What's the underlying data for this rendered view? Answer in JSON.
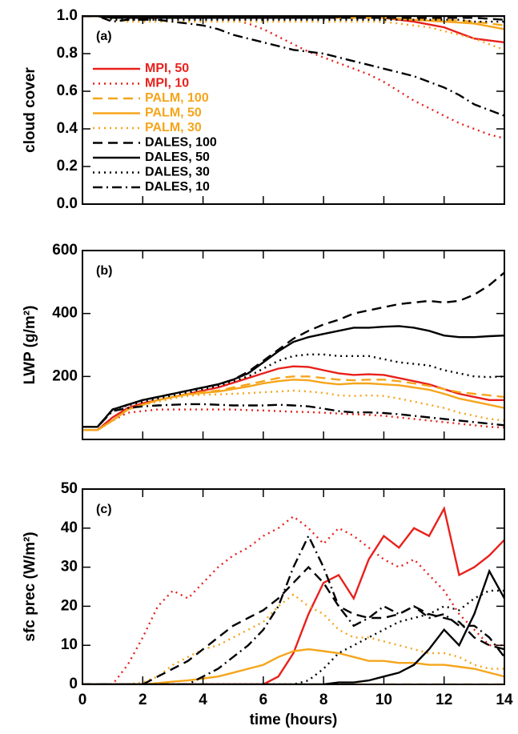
{
  "chart_data": [
    {
      "type": "line",
      "annotation": "(a)",
      "ylabel": "cloud cover",
      "x": [
        0,
        0.5,
        1,
        1.5,
        2,
        2.5,
        3,
        3.5,
        4,
        4.5,
        5,
        5.5,
        6,
        6.5,
        7,
        7.5,
        8,
        8.5,
        9,
        9.5,
        10,
        10.5,
        11,
        11.5,
        12,
        12.5,
        13,
        13.5,
        14
      ],
      "xlim": [
        0,
        14
      ],
      "xticks": [
        0,
        2,
        4,
        6,
        8,
        10,
        12,
        14
      ],
      "xtick_labels": false,
      "ylim": [
        0,
        1
      ],
      "yticks": [
        {
          "value": 0,
          "label": "0.0"
        },
        0.2,
        0.4,
        0.6,
        0.8,
        {
          "value": 1,
          "label": "1.0"
        }
      ],
      "legend": "upper left",
      "series": [
        {
          "name": "MPI, 50",
          "color": "#e8211c",
          "dash": "solid",
          "values": [
            1,
            1,
            1,
            1,
            1,
            1,
            1,
            1,
            1,
            1,
            1,
            1,
            1,
            1,
            1,
            1,
            1,
            0.995,
            0.99,
            0.99,
            0.99,
            0.98,
            0.97,
            0.955,
            0.94,
            0.91,
            0.88,
            0.87,
            0.86
          ]
        },
        {
          "name": "MPI, 10",
          "color": "#e8211c",
          "dash": "dotted",
          "values": [
            1,
            1,
            1,
            1,
            1,
            1,
            1,
            1,
            1,
            0.99,
            0.98,
            0.96,
            0.93,
            0.89,
            0.85,
            0.81,
            0.78,
            0.75,
            0.72,
            0.69,
            0.65,
            0.6,
            0.55,
            0.51,
            0.47,
            0.43,
            0.4,
            0.37,
            0.35
          ]
        },
        {
          "name": "PALM, 100",
          "color": "#f5a51b",
          "dash": "dashed",
          "values": [
            1,
            1,
            0.99,
            0.99,
            0.99,
            0.99,
            0.99,
            0.99,
            0.99,
            0.99,
            0.99,
            0.99,
            0.99,
            0.99,
            0.99,
            0.99,
            0.99,
            0.99,
            0.99,
            0.99,
            0.99,
            0.99,
            0.99,
            0.985,
            0.98,
            0.975,
            0.97,
            0.96,
            0.95
          ]
        },
        {
          "name": "PALM, 50",
          "color": "#f5a51b",
          "dash": "solid",
          "values": [
            1,
            1,
            0.99,
            0.99,
            0.99,
            0.99,
            0.99,
            0.99,
            0.99,
            0.99,
            0.99,
            0.99,
            0.99,
            0.99,
            0.99,
            0.99,
            0.99,
            0.99,
            0.99,
            0.99,
            0.99,
            0.985,
            0.98,
            0.975,
            0.97,
            0.965,
            0.96,
            0.945,
            0.93
          ]
        },
        {
          "name": "PALM, 30",
          "color": "#f5a51b",
          "dash": "dotted",
          "values": [
            1,
            1,
            0.98,
            0.97,
            0.97,
            0.97,
            0.97,
            0.97,
            0.97,
            0.97,
            0.97,
            0.97,
            0.97,
            0.97,
            0.97,
            0.97,
            0.97,
            0.97,
            0.97,
            0.97,
            0.97,
            0.96,
            0.95,
            0.94,
            0.92,
            0.9,
            0.88,
            0.85,
            0.82
          ]
        },
        {
          "name": "DALES, 100",
          "color": "#000000",
          "dash": "dashed",
          "values": [
            1,
            1,
            0.99,
            0.99,
            0.99,
            0.99,
            0.99,
            0.99,
            0.99,
            0.99,
            0.99,
            0.99,
            0.99,
            0.99,
            0.99,
            0.99,
            0.99,
            0.99,
            0.99,
            0.99,
            0.99,
            0.99,
            0.99,
            0.99,
            0.99,
            0.99,
            0.99,
            0.985,
            0.98
          ]
        },
        {
          "name": "DALES, 50",
          "color": "#000000",
          "dash": "solid",
          "values": [
            1,
            1,
            0.99,
            0.99,
            0.99,
            0.99,
            0.99,
            0.99,
            0.99,
            0.99,
            0.99,
            0.99,
            0.99,
            0.99,
            0.99,
            0.99,
            0.99,
            0.995,
            1,
            1,
            1,
            1,
            1,
            1,
            1,
            1,
            1,
            1,
            1
          ]
        },
        {
          "name": "DALES, 30",
          "color": "#000000",
          "dash": "dotted",
          "values": [
            1,
            1,
            0.98,
            0.98,
            0.98,
            0.98,
            0.98,
            0.98,
            0.98,
            0.98,
            0.98,
            0.98,
            0.98,
            0.98,
            0.98,
            0.98,
            0.98,
            0.98,
            0.98,
            0.98,
            0.98,
            0.98,
            0.98,
            0.98,
            0.98,
            0.98,
            0.97,
            0.97,
            0.97
          ]
        },
        {
          "name": "DALES, 10",
          "color": "#000000",
          "dash": "dashdot",
          "values": [
            1,
            1,
            0.97,
            0.98,
            0.98,
            0.98,
            0.97,
            0.96,
            0.95,
            0.93,
            0.9,
            0.88,
            0.86,
            0.84,
            0.82,
            0.81,
            0.8,
            0.78,
            0.76,
            0.74,
            0.72,
            0.7,
            0.68,
            0.65,
            0.62,
            0.58,
            0.53,
            0.5,
            0.47
          ]
        }
      ]
    },
    {
      "type": "line",
      "annotation": "(b)",
      "ylabel": "LWP (g/m²)",
      "x": [
        0,
        0.5,
        1,
        1.5,
        2,
        2.5,
        3,
        3.5,
        4,
        4.5,
        5,
        5.5,
        6,
        6.5,
        7,
        7.5,
        8,
        8.5,
        9,
        9.5,
        10,
        10.5,
        11,
        11.5,
        12,
        12.5,
        13,
        13.5,
        14
      ],
      "xlim": [
        0,
        14
      ],
      "xticks": [
        0,
        2,
        4,
        6,
        8,
        10,
        12,
        14
      ],
      "xtick_labels": false,
      "ylim": [
        0,
        600
      ],
      "yticks": [
        200,
        400,
        600
      ],
      "series": [
        {
          "color": "#e8211c",
          "dash": "solid",
          "values": [
            30,
            30,
            70,
            100,
            115,
            125,
            135,
            145,
            155,
            165,
            180,
            195,
            210,
            225,
            232,
            230,
            220,
            210,
            205,
            207,
            205,
            195,
            185,
            175,
            160,
            145,
            135,
            125,
            125
          ]
        },
        {
          "color": "#e8211c",
          "dash": "dotted",
          "values": [
            30,
            30,
            60,
            85,
            90,
            95,
            95,
            95,
            95,
            95,
            95,
            93,
            92,
            90,
            88,
            87,
            85,
            82,
            80,
            78,
            75,
            70,
            65,
            60,
            55,
            50,
            45,
            40,
            38
          ]
        },
        {
          "color": "#f5a51b",
          "dash": "dashed",
          "values": [
            30,
            30,
            60,
            95,
            110,
            125,
            135,
            145,
            150,
            155,
            165,
            175,
            185,
            195,
            200,
            200,
            195,
            190,
            188,
            190,
            190,
            185,
            178,
            170,
            160,
            150,
            145,
            140,
            135
          ]
        },
        {
          "color": "#f5a51b",
          "dash": "solid",
          "values": [
            30,
            30,
            60,
            95,
            110,
            125,
            135,
            143,
            148,
            152,
            160,
            168,
            178,
            185,
            190,
            188,
            180,
            175,
            178,
            178,
            175,
            172,
            165,
            158,
            145,
            130,
            120,
            110,
            100
          ]
        },
        {
          "color": "#f5a51b",
          "dash": "dotted",
          "values": [
            30,
            30,
            60,
            95,
            110,
            120,
            130,
            138,
            142,
            143,
            145,
            147,
            150,
            152,
            155,
            152,
            148,
            140,
            138,
            140,
            138,
            130,
            120,
            110,
            100,
            85,
            75,
            65,
            60
          ]
        },
        {
          "color": "#000000",
          "dash": "dashed",
          "values": [
            40,
            40,
            95,
            110,
            125,
            135,
            145,
            155,
            165,
            175,
            190,
            215,
            250,
            285,
            320,
            345,
            365,
            380,
            400,
            410,
            420,
            430,
            435,
            440,
            435,
            440,
            460,
            490,
            530
          ]
        },
        {
          "color": "#000000",
          "dash": "solid",
          "values": [
            40,
            40,
            95,
            110,
            125,
            135,
            145,
            155,
            165,
            175,
            190,
            210,
            245,
            280,
            310,
            325,
            335,
            345,
            355,
            355,
            358,
            360,
            355,
            345,
            330,
            325,
            325,
            328,
            330
          ]
        },
        {
          "color": "#000000",
          "dash": "dotted",
          "values": [
            40,
            40,
            95,
            108,
            120,
            130,
            140,
            150,
            160,
            170,
            185,
            200,
            225,
            250,
            265,
            270,
            270,
            265,
            265,
            265,
            255,
            245,
            240,
            235,
            220,
            210,
            200,
            198,
            200
          ]
        },
        {
          "color": "#000000",
          "dash": "dashdot",
          "values": [
            40,
            40,
            90,
            100,
            105,
            108,
            110,
            112,
            112,
            110,
            108,
            108,
            108,
            110,
            108,
            105,
            98,
            90,
            86,
            86,
            84,
            80,
            75,
            70,
            65,
            60,
            55,
            50,
            45
          ]
        }
      ]
    },
    {
      "type": "line",
      "annotation": "(c)",
      "ylabel": "sfc prec (W/m²)",
      "xlabel": "time (hours)",
      "x": [
        0,
        0.5,
        1,
        1.5,
        2,
        2.5,
        3,
        3.5,
        4,
        4.5,
        5,
        5.5,
        6,
        6.5,
        7,
        7.5,
        8,
        8.5,
        9,
        9.5,
        10,
        10.5,
        11,
        11.5,
        12,
        12.5,
        13,
        13.5,
        14
      ],
      "xlim": [
        0,
        14
      ],
      "xticks": [
        0,
        2,
        4,
        6,
        8,
        10,
        12,
        14
      ],
      "xtick_labels": true,
      "ylim": [
        0,
        50
      ],
      "yticks": [
        0,
        10,
        20,
        30,
        40,
        50
      ],
      "series": [
        {
          "color": "#e8211c",
          "dash": "solid",
          "values": [
            0,
            0,
            0,
            0,
            0,
            0,
            0,
            0,
            0,
            0,
            0,
            0,
            0,
            2,
            8,
            18,
            26,
            28,
            22,
            32,
            38,
            35,
            40,
            38,
            45,
            28,
            30,
            33,
            37
          ]
        },
        {
          "color": "#e8211c",
          "dash": "dotted",
          "values": [
            0,
            0,
            0,
            5,
            12,
            20,
            24,
            22,
            26,
            30,
            33,
            35,
            38,
            40,
            43,
            40,
            36,
            40,
            38,
            35,
            32,
            30,
            32,
            28,
            24,
            18,
            14,
            10,
            10
          ]
        },
        {
          "color": "#f5a51b",
          "dash": "dashed",
          "values": [
            0,
            0,
            0,
            0,
            0,
            0,
            0,
            0,
            0,
            0,
            0,
            0,
            0,
            0,
            0,
            0,
            0,
            0,
            0,
            0,
            0,
            0,
            0,
            0,
            0,
            0,
            0,
            0,
            0
          ]
        },
        {
          "color": "#f5a51b",
          "dash": "solid",
          "values": [
            0,
            0,
            0,
            0,
            0,
            0.3,
            0.7,
            1,
            1.5,
            2,
            3,
            4,
            5,
            7,
            8.5,
            9,
            8.5,
            8,
            7,
            6,
            6,
            5.5,
            5.5,
            5,
            5,
            4.5,
            4,
            3,
            2
          ]
        },
        {
          "color": "#f5a51b",
          "dash": "dotted",
          "values": [
            0,
            0,
            0,
            0,
            0.5,
            2,
            5,
            7,
            9,
            10,
            12,
            14,
            16,
            20,
            23,
            20,
            18,
            14,
            12,
            12,
            11,
            10,
            9,
            8,
            8,
            7,
            5,
            4,
            4
          ]
        },
        {
          "color": "#000000",
          "dash": "dashed",
          "values": [
            0,
            0,
            0,
            0,
            0,
            2,
            4,
            6,
            9,
            12,
            15,
            17,
            19,
            22,
            26,
            30,
            26,
            20,
            18,
            17,
            17,
            18,
            20,
            18,
            17,
            16,
            12,
            10,
            9
          ]
        },
        {
          "color": "#000000",
          "dash": "solid",
          "values": [
            0,
            0,
            0,
            0,
            0,
            0,
            0,
            0,
            0,
            0,
            0,
            0,
            0,
            0,
            0,
            0,
            0,
            0.5,
            0.5,
            1,
            2,
            3,
            5,
            9,
            14,
            10,
            18,
            29,
            22
          ]
        },
        {
          "color": "#000000",
          "dash": "dotted",
          "values": [
            0,
            0,
            0,
            0,
            0,
            0,
            0,
            0,
            0,
            0,
            0,
            0,
            0,
            0,
            0,
            1,
            4,
            8,
            10,
            12,
            14,
            16,
            17,
            18,
            20,
            19,
            22,
            24,
            24
          ]
        },
        {
          "color": "#000000",
          "dash": "dashdot",
          "values": [
            0,
            0,
            0,
            0,
            0,
            0,
            0,
            0,
            2,
            4,
            7,
            10,
            14,
            20,
            30,
            38,
            30,
            20,
            15,
            17,
            20,
            18,
            20,
            17,
            18,
            15,
            15,
            12,
            7
          ]
        }
      ]
    }
  ]
}
